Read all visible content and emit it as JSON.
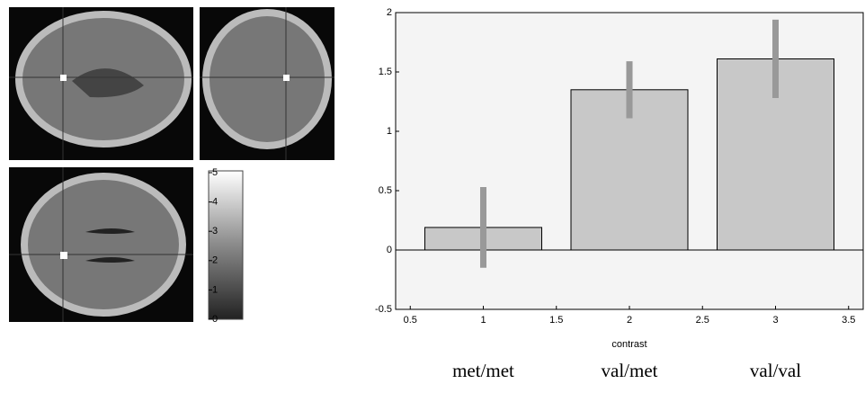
{
  "chart_data": {
    "type": "bar",
    "x": [
      1,
      2,
      3
    ],
    "categories": [
      "met/met",
      "val/met",
      "val/val"
    ],
    "values": [
      0.19,
      1.35,
      1.61
    ],
    "errors": [
      0.34,
      0.24,
      0.33
    ],
    "color": "#c8c8c8",
    "error_color": "#999999",
    "xlabel": "contrast",
    "xlim": [
      0.4,
      3.6
    ],
    "xticks": [
      0.5,
      1,
      1.5,
      2,
      2.5,
      3,
      3.5
    ],
    "ylim": [
      -0.5,
      2
    ],
    "yticks": [
      -0.5,
      0,
      0.5,
      1,
      1.5,
      2
    ]
  },
  "colorbar": {
    "lim": [
      0,
      5
    ],
    "ticks": [
      0,
      1,
      2,
      3,
      4,
      5
    ]
  }
}
